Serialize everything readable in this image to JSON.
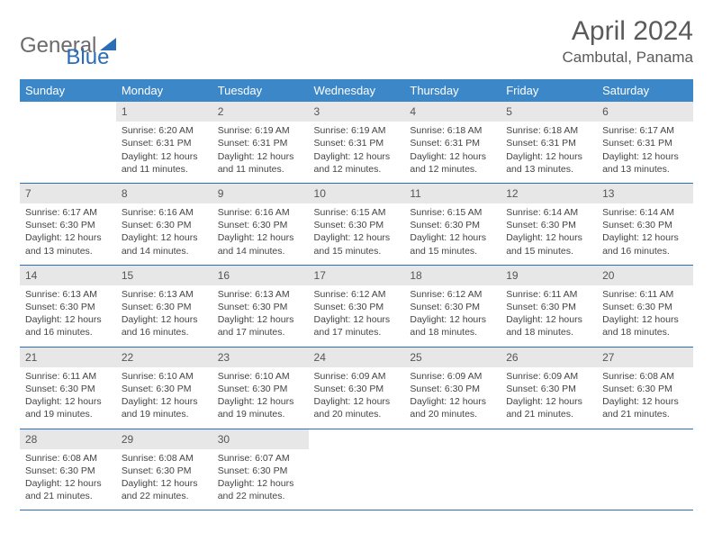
{
  "logo": {
    "word1": "General",
    "word2": "Blue"
  },
  "title": "April 2024",
  "location": "Cambutal, Panama",
  "colors": {
    "header_bg": "#3b87c8",
    "header_text": "#ffffff",
    "daynum_bg": "#e7e7e7",
    "rule": "#2a6db8",
    "title_color": "#5a5a5a",
    "logo_gray": "#6b6b6b",
    "logo_blue": "#2a6db8"
  },
  "typography": {
    "title_fontsize": 30,
    "location_fontsize": 17,
    "dayheader_fontsize": 13,
    "cell_fontsize": 10.5
  },
  "day_names": [
    "Sunday",
    "Monday",
    "Tuesday",
    "Wednesday",
    "Thursday",
    "Friday",
    "Saturday"
  ],
  "weeks": [
    [
      {
        "n": "",
        "sunrise": "",
        "sunset": "",
        "daylight": ""
      },
      {
        "n": "1",
        "sunrise": "Sunrise: 6:20 AM",
        "sunset": "Sunset: 6:31 PM",
        "daylight": "Daylight: 12 hours and 11 minutes."
      },
      {
        "n": "2",
        "sunrise": "Sunrise: 6:19 AM",
        "sunset": "Sunset: 6:31 PM",
        "daylight": "Daylight: 12 hours and 11 minutes."
      },
      {
        "n": "3",
        "sunrise": "Sunrise: 6:19 AM",
        "sunset": "Sunset: 6:31 PM",
        "daylight": "Daylight: 12 hours and 12 minutes."
      },
      {
        "n": "4",
        "sunrise": "Sunrise: 6:18 AM",
        "sunset": "Sunset: 6:31 PM",
        "daylight": "Daylight: 12 hours and 12 minutes."
      },
      {
        "n": "5",
        "sunrise": "Sunrise: 6:18 AM",
        "sunset": "Sunset: 6:31 PM",
        "daylight": "Daylight: 12 hours and 13 minutes."
      },
      {
        "n": "6",
        "sunrise": "Sunrise: 6:17 AM",
        "sunset": "Sunset: 6:31 PM",
        "daylight": "Daylight: 12 hours and 13 minutes."
      }
    ],
    [
      {
        "n": "7",
        "sunrise": "Sunrise: 6:17 AM",
        "sunset": "Sunset: 6:30 PM",
        "daylight": "Daylight: 12 hours and 13 minutes."
      },
      {
        "n": "8",
        "sunrise": "Sunrise: 6:16 AM",
        "sunset": "Sunset: 6:30 PM",
        "daylight": "Daylight: 12 hours and 14 minutes."
      },
      {
        "n": "9",
        "sunrise": "Sunrise: 6:16 AM",
        "sunset": "Sunset: 6:30 PM",
        "daylight": "Daylight: 12 hours and 14 minutes."
      },
      {
        "n": "10",
        "sunrise": "Sunrise: 6:15 AM",
        "sunset": "Sunset: 6:30 PM",
        "daylight": "Daylight: 12 hours and 15 minutes."
      },
      {
        "n": "11",
        "sunrise": "Sunrise: 6:15 AM",
        "sunset": "Sunset: 6:30 PM",
        "daylight": "Daylight: 12 hours and 15 minutes."
      },
      {
        "n": "12",
        "sunrise": "Sunrise: 6:14 AM",
        "sunset": "Sunset: 6:30 PM",
        "daylight": "Daylight: 12 hours and 15 minutes."
      },
      {
        "n": "13",
        "sunrise": "Sunrise: 6:14 AM",
        "sunset": "Sunset: 6:30 PM",
        "daylight": "Daylight: 12 hours and 16 minutes."
      }
    ],
    [
      {
        "n": "14",
        "sunrise": "Sunrise: 6:13 AM",
        "sunset": "Sunset: 6:30 PM",
        "daylight": "Daylight: 12 hours and 16 minutes."
      },
      {
        "n": "15",
        "sunrise": "Sunrise: 6:13 AM",
        "sunset": "Sunset: 6:30 PM",
        "daylight": "Daylight: 12 hours and 16 minutes."
      },
      {
        "n": "16",
        "sunrise": "Sunrise: 6:13 AM",
        "sunset": "Sunset: 6:30 PM",
        "daylight": "Daylight: 12 hours and 17 minutes."
      },
      {
        "n": "17",
        "sunrise": "Sunrise: 6:12 AM",
        "sunset": "Sunset: 6:30 PM",
        "daylight": "Daylight: 12 hours and 17 minutes."
      },
      {
        "n": "18",
        "sunrise": "Sunrise: 6:12 AM",
        "sunset": "Sunset: 6:30 PM",
        "daylight": "Daylight: 12 hours and 18 minutes."
      },
      {
        "n": "19",
        "sunrise": "Sunrise: 6:11 AM",
        "sunset": "Sunset: 6:30 PM",
        "daylight": "Daylight: 12 hours and 18 minutes."
      },
      {
        "n": "20",
        "sunrise": "Sunrise: 6:11 AM",
        "sunset": "Sunset: 6:30 PM",
        "daylight": "Daylight: 12 hours and 18 minutes."
      }
    ],
    [
      {
        "n": "21",
        "sunrise": "Sunrise: 6:11 AM",
        "sunset": "Sunset: 6:30 PM",
        "daylight": "Daylight: 12 hours and 19 minutes."
      },
      {
        "n": "22",
        "sunrise": "Sunrise: 6:10 AM",
        "sunset": "Sunset: 6:30 PM",
        "daylight": "Daylight: 12 hours and 19 minutes."
      },
      {
        "n": "23",
        "sunrise": "Sunrise: 6:10 AM",
        "sunset": "Sunset: 6:30 PM",
        "daylight": "Daylight: 12 hours and 19 minutes."
      },
      {
        "n": "24",
        "sunrise": "Sunrise: 6:09 AM",
        "sunset": "Sunset: 6:30 PM",
        "daylight": "Daylight: 12 hours and 20 minutes."
      },
      {
        "n": "25",
        "sunrise": "Sunrise: 6:09 AM",
        "sunset": "Sunset: 6:30 PM",
        "daylight": "Daylight: 12 hours and 20 minutes."
      },
      {
        "n": "26",
        "sunrise": "Sunrise: 6:09 AM",
        "sunset": "Sunset: 6:30 PM",
        "daylight": "Daylight: 12 hours and 21 minutes."
      },
      {
        "n": "27",
        "sunrise": "Sunrise: 6:08 AM",
        "sunset": "Sunset: 6:30 PM",
        "daylight": "Daylight: 12 hours and 21 minutes."
      }
    ],
    [
      {
        "n": "28",
        "sunrise": "Sunrise: 6:08 AM",
        "sunset": "Sunset: 6:30 PM",
        "daylight": "Daylight: 12 hours and 21 minutes."
      },
      {
        "n": "29",
        "sunrise": "Sunrise: 6:08 AM",
        "sunset": "Sunset: 6:30 PM",
        "daylight": "Daylight: 12 hours and 22 minutes."
      },
      {
        "n": "30",
        "sunrise": "Sunrise: 6:07 AM",
        "sunset": "Sunset: 6:30 PM",
        "daylight": "Daylight: 12 hours and 22 minutes."
      },
      {
        "n": "",
        "sunrise": "",
        "sunset": "",
        "daylight": ""
      },
      {
        "n": "",
        "sunrise": "",
        "sunset": "",
        "daylight": ""
      },
      {
        "n": "",
        "sunrise": "",
        "sunset": "",
        "daylight": ""
      },
      {
        "n": "",
        "sunrise": "",
        "sunset": "",
        "daylight": ""
      }
    ]
  ]
}
